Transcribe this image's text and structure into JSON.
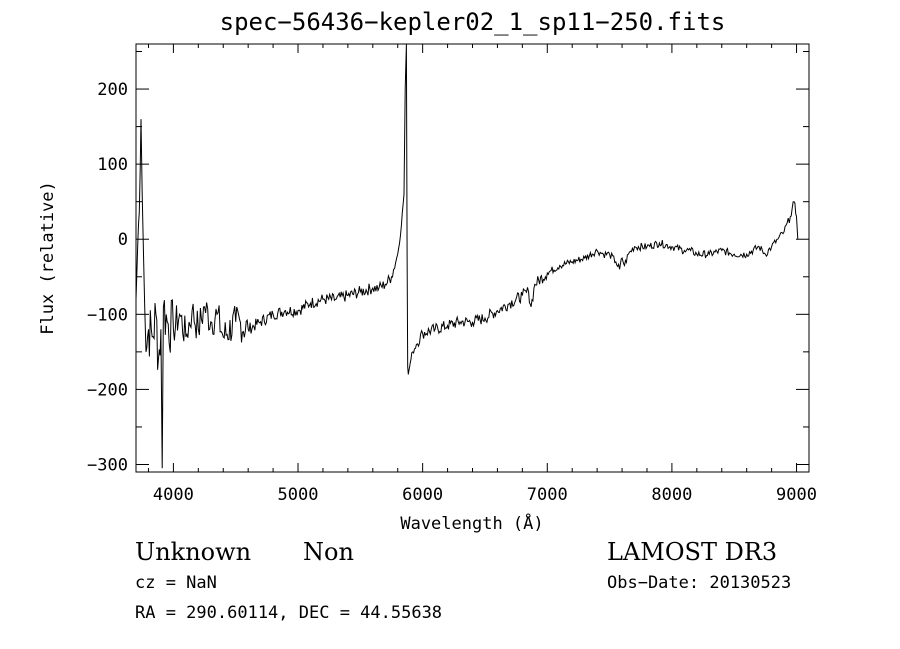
{
  "title": "spec−56436−kepler02_1_sp11−250.fits",
  "footer": {
    "object_class": "Unknown",
    "object_subclass": "Non",
    "survey": "LAMOST DR3",
    "cz": "cz = NaN",
    "obs_date": "Obs−Date: 20130523",
    "ra_dec": "RA = 290.60114, DEC =  44.55638"
  },
  "chart_data": {
    "type": "line",
    "title": "spec−56436−kepler02_1_sp11−250.fits",
    "xlabel": "Wavelength (Å)",
    "ylabel": "Flux (relative)",
    "xlim": [
      3700,
      9100
    ],
    "ylim": [
      -310,
      260
    ],
    "xticks": [
      4000,
      5000,
      6000,
      7000,
      8000,
      9000
    ],
    "xtick_labels": [
      "4000",
      "5000",
      "6000",
      "7000",
      "8000",
      "9000"
    ],
    "yticks": [
      -300,
      -200,
      -100,
      0,
      100,
      200
    ],
    "ytick_labels": [
      "−300",
      "−200",
      "−100",
      "0",
      "100",
      "200"
    ],
    "grid": false,
    "line_color": "#000000",
    "series": [
      {
        "x": [
          3700,
          3720,
          3740,
          3750,
          3760,
          3770,
          3780,
          3800,
          3830,
          3860,
          3880,
          3900,
          3910,
          3920,
          3950,
          4000,
          4050,
          4100,
          4150,
          4200,
          4250,
          4300,
          4350,
          4400,
          4500,
          4600,
          4700,
          4800,
          4900,
          5000,
          5100,
          5200,
          5300,
          5400,
          5500,
          5600,
          5650,
          5700,
          5750,
          5800,
          5830,
          5850,
          5860,
          5870,
          5875,
          5880,
          5885,
          5890,
          5895,
          5900,
          5920,
          5950,
          6000,
          6100,
          6200,
          6300,
          6400,
          6500,
          6600,
          6700,
          6800,
          6850,
          6870,
          6900,
          7000,
          7100,
          7200,
          7300,
          7400,
          7450,
          7500,
          7550,
          7580,
          7600,
          7620,
          7650,
          7700,
          7800,
          7900,
          8000,
          8100,
          8150,
          8200,
          8300,
          8400,
          8500,
          8600,
          8700,
          8750,
          8800,
          8850,
          8900,
          8950,
          8980,
          9000,
          9010
        ],
        "y": [
          -80,
          20,
          160,
          60,
          -20,
          -90,
          -150,
          -120,
          -130,
          -100,
          -160,
          -120,
          -305,
          -90,
          -110,
          -120,
          -100,
          -130,
          -95,
          -120,
          -90,
          -110,
          -100,
          -130,
          -110,
          -120,
          -110,
          -100,
          -95,
          -95,
          -85,
          -80,
          -80,
          -75,
          -70,
          -65,
          -65,
          -60,
          -50,
          -20,
          20,
          60,
          200,
          260,
          -20,
          -170,
          -180,
          -175,
          -170,
          -165,
          -150,
          -140,
          -125,
          -120,
          -115,
          -110,
          -110,
          -105,
          -95,
          -85,
          -75,
          -70,
          -90,
          -60,
          -45,
          -35,
          -30,
          -25,
          -15,
          -20,
          -20,
          -30,
          -40,
          -25,
          -35,
          -20,
          -10,
          -10,
          -5,
          -10,
          -15,
          -15,
          -20,
          -20,
          -15,
          -20,
          -20,
          -10,
          -20,
          -10,
          0,
          10,
          30,
          50,
          30,
          0
        ]
      }
    ]
  }
}
